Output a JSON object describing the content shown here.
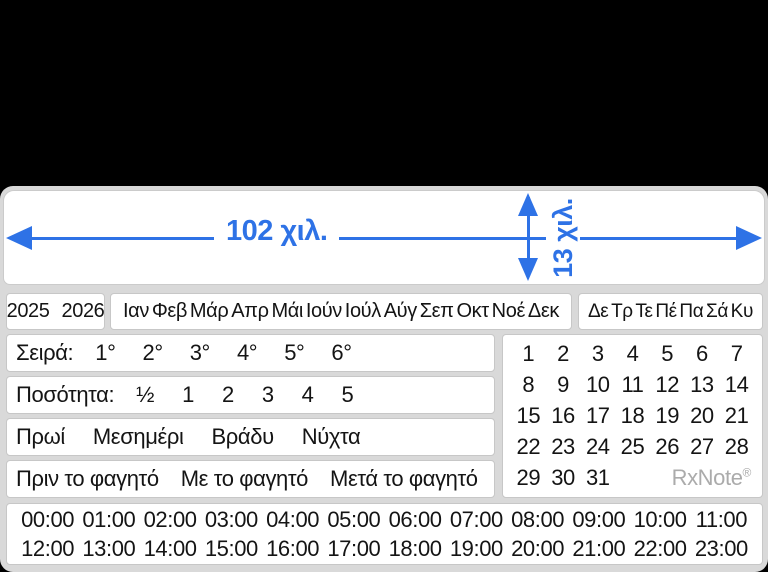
{
  "dimensions": {
    "width_label": "102 χιλ.",
    "height_label": "13 χιλ."
  },
  "colors": {
    "accent_blue": "#2e72e6",
    "label_base_gray": "#d9d9d9",
    "cell_border": "#c7c7c7",
    "text": "#141414",
    "brand_gray": "#ababab"
  },
  "header": {
    "years": [
      "2025",
      "2026"
    ],
    "months": [
      "Ιαν",
      "Φεβ",
      "Μάρ",
      "Απρ",
      "Μάι",
      "Ιούν",
      "Ιούλ",
      "Αύγ",
      "Σεπ",
      "Οκτ",
      "Νοέ",
      "Δεκ"
    ],
    "weekdays": [
      "Δε",
      "Τρ",
      "Τε",
      "Πέ",
      "Πα",
      "Σά",
      "Κυ"
    ]
  },
  "rows": {
    "series": {
      "label": "Σειρά:",
      "items": [
        "1°",
        "2°",
        "3°",
        "4°",
        "5°",
        "6°"
      ]
    },
    "quantity": {
      "label": "Ποσότητα:",
      "items": [
        "½",
        "1",
        "2",
        "3",
        "4",
        "5"
      ]
    },
    "daypart": {
      "items": [
        "Πρωί",
        "Μεσημέρι",
        "Βράδυ",
        "Νύχτα"
      ]
    },
    "meal": {
      "items": [
        "Πριν το φαγητό",
        "Με το φαγητό",
        "Μετά το φαγητό"
      ]
    }
  },
  "calendar": {
    "days": [
      "1",
      "2",
      "3",
      "4",
      "5",
      "6",
      "7",
      "8",
      "9",
      "10",
      "11",
      "12",
      "13",
      "14",
      "15",
      "16",
      "17",
      "18",
      "19",
      "20",
      "21",
      "22",
      "23",
      "24",
      "25",
      "26",
      "27",
      "28",
      "29",
      "30",
      "31"
    ],
    "brand": "RxNote",
    "brand_mark": "®"
  },
  "times": [
    "00:00",
    "01:00",
    "02:00",
    "03:00",
    "04:00",
    "05:00",
    "06:00",
    "07:00",
    "08:00",
    "09:00",
    "10:00",
    "11:00",
    "12:00",
    "13:00",
    "14:00",
    "15:00",
    "16:00",
    "17:00",
    "18:00",
    "19:00",
    "20:00",
    "21:00",
    "22:00",
    "23:00"
  ]
}
